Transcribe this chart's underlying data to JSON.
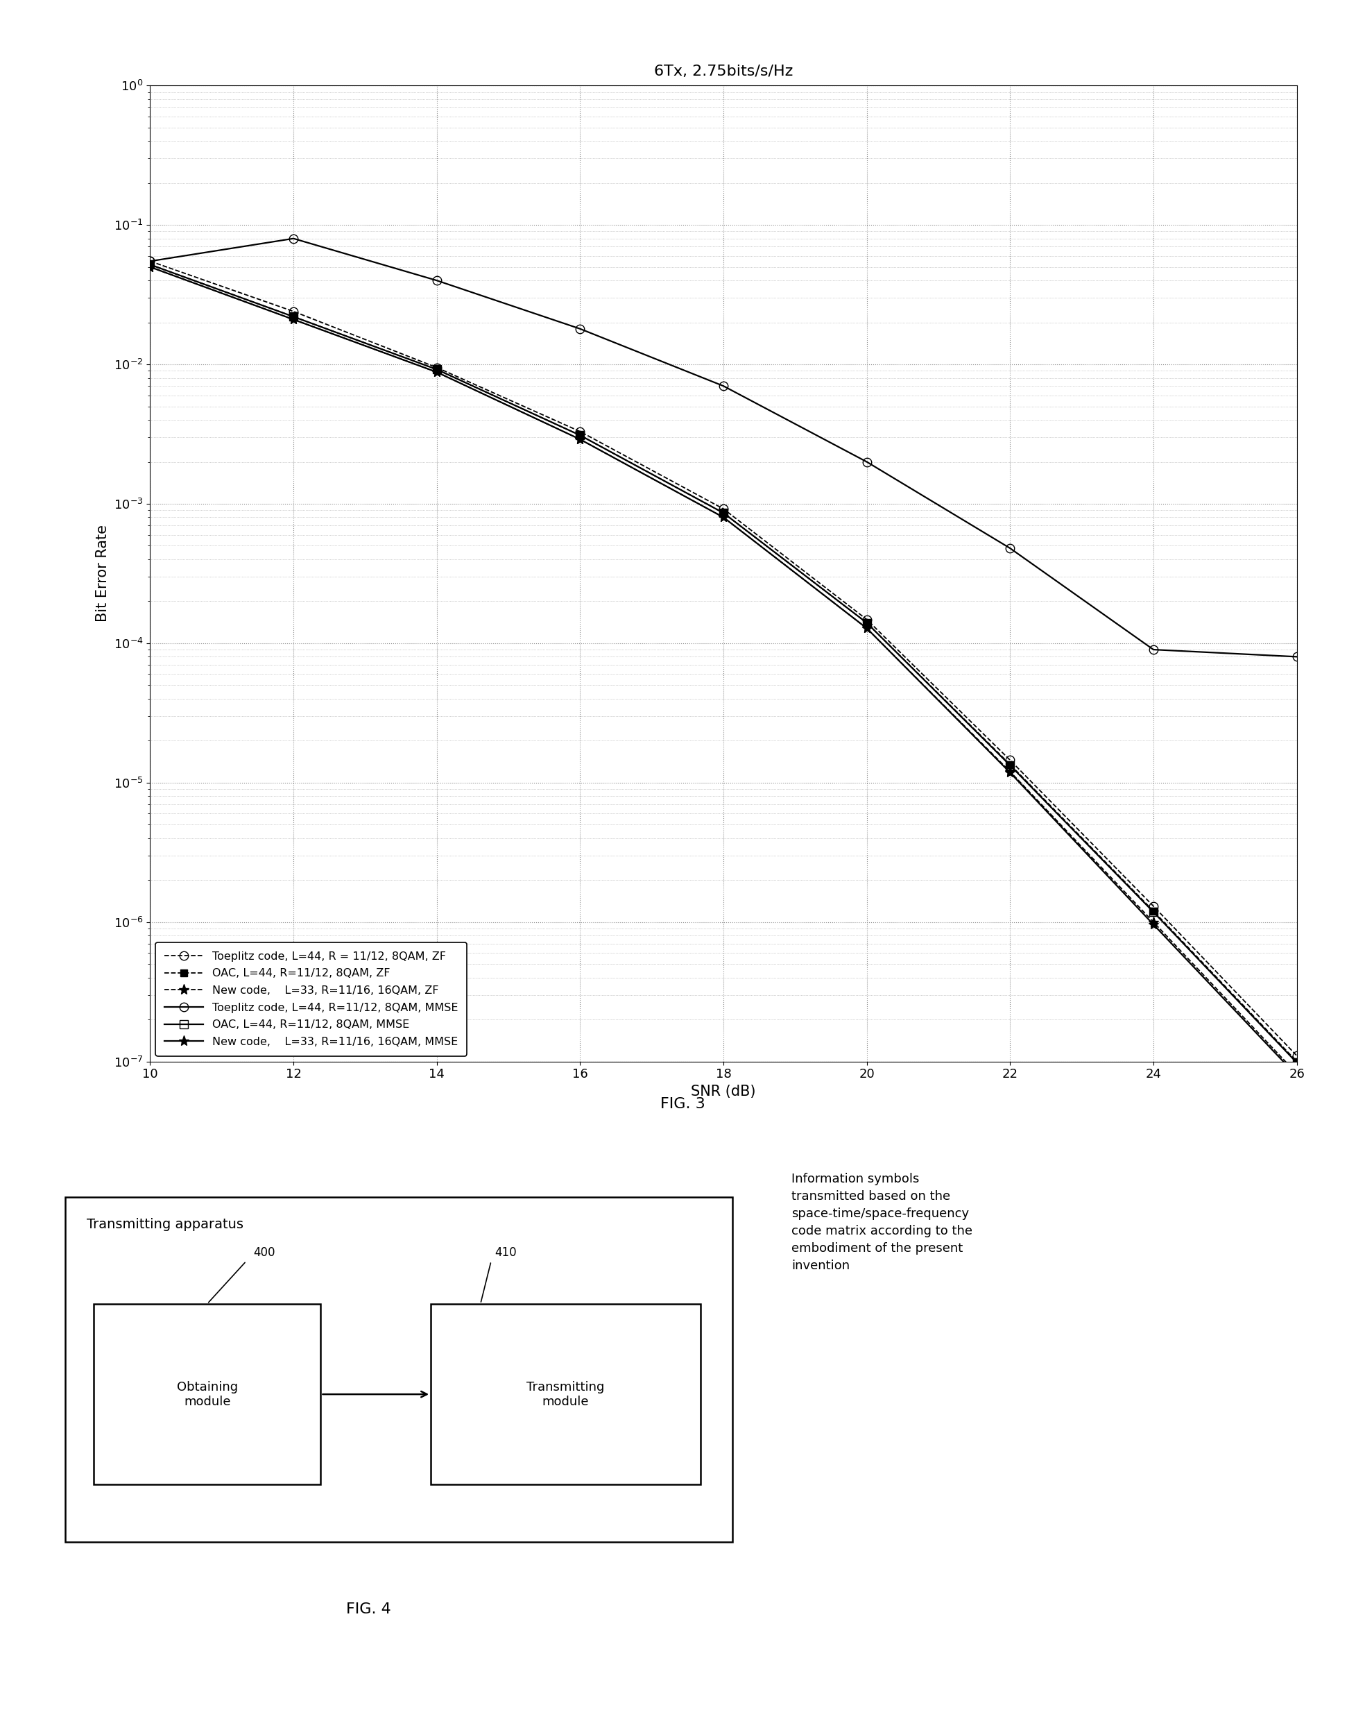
{
  "title": "6Tx, 2.75bits/s/Hz",
  "xlabel": "SNR (dB)",
  "ylabel": "Bit Error Rate",
  "snr": [
    10,
    12,
    14,
    16,
    18,
    20,
    22,
    24,
    26
  ],
  "toeplitz_zf": [
    0.055,
    0.024,
    0.0095,
    0.0033,
    0.00092,
    0.000148,
    1.45e-05,
    1.3e-06,
    1.1e-07
  ],
  "oac_zf": [
    0.052,
    0.022,
    0.0092,
    0.0031,
    0.00086,
    0.00014,
    1.35e-05,
    1.2e-06,
    1e-07
  ],
  "newcode_zf": [
    0.05,
    0.021,
    0.0088,
    0.0029,
    0.0008,
    0.000128,
    1.2e-05,
    1e-06,
    8.2e-08
  ],
  "toeplitz_mmse": [
    0.055,
    0.08,
    0.04,
    0.018,
    0.007,
    0.002,
    0.00048,
    9e-05,
    8e-05
  ],
  "oac_mmse": [
    0.052,
    0.022,
    0.0092,
    0.0031,
    0.00086,
    0.00014,
    1.33e-05,
    1.18e-06,
    9.8e-08
  ],
  "newcode_mmse": [
    0.05,
    0.021,
    0.0088,
    0.0029,
    0.0008,
    0.000128,
    1.18e-05,
    9.6e-07,
    7.9e-08
  ],
  "legend_labels": [
    "Toeplitz code, L=44, R = 11/12, 8QAM, ZF",
    "OAC, L=44, R=11/12, 8QAM, ZF",
    "New code,    L=33, R=11/16, 16QAM, ZF",
    "Toeplitz code, L=44, R=11/12, 8QAM, MMSE",
    "OAC, L=44, R=11/12, 8QAM, MMSE",
    "New code,    L=33, R=11/16, 16QAM, MMSE"
  ],
  "fig3_label": "FIG. 3",
  "fig4_label": "FIG. 4",
  "box_label": "Transmitting apparatus",
  "module1_label": "Obtaining\nmodule",
  "module2_label": "Transmitting\nmodule",
  "module1_tag": "400",
  "module2_tag": "410",
  "annotation_text": "Information symbols\ntransmitted based on the\nspace-time/space-frequency\ncode matrix according to the\nembodiment of the present\ninvention"
}
